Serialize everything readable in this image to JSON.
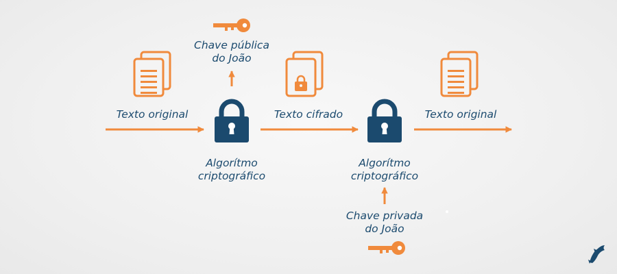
{
  "colors": {
    "accent": "#f08a3c",
    "navy": "#1b4a6e",
    "background": "#f2f2f2"
  },
  "labels": {
    "plain_in": "Texto original",
    "public_key_line1": "Chave pública",
    "public_key_line2": "do João",
    "cipher_text": "Texto cifrado",
    "algorithm1_line1": "Algorítmo",
    "algorithm1_line2": "criptográfico",
    "algorithm2_line1": "Algorítmo",
    "algorithm2_line2": "criptográfico",
    "plain_out": "Texto original",
    "private_key_line1": "Chave privada",
    "private_key_line2": "do João"
  },
  "icons": {
    "documents": "documents-icon",
    "locked_document": "locked-document-icon",
    "padlock": "padlock-icon",
    "key": "key-icon",
    "logo": "dolphin-logo-icon"
  }
}
